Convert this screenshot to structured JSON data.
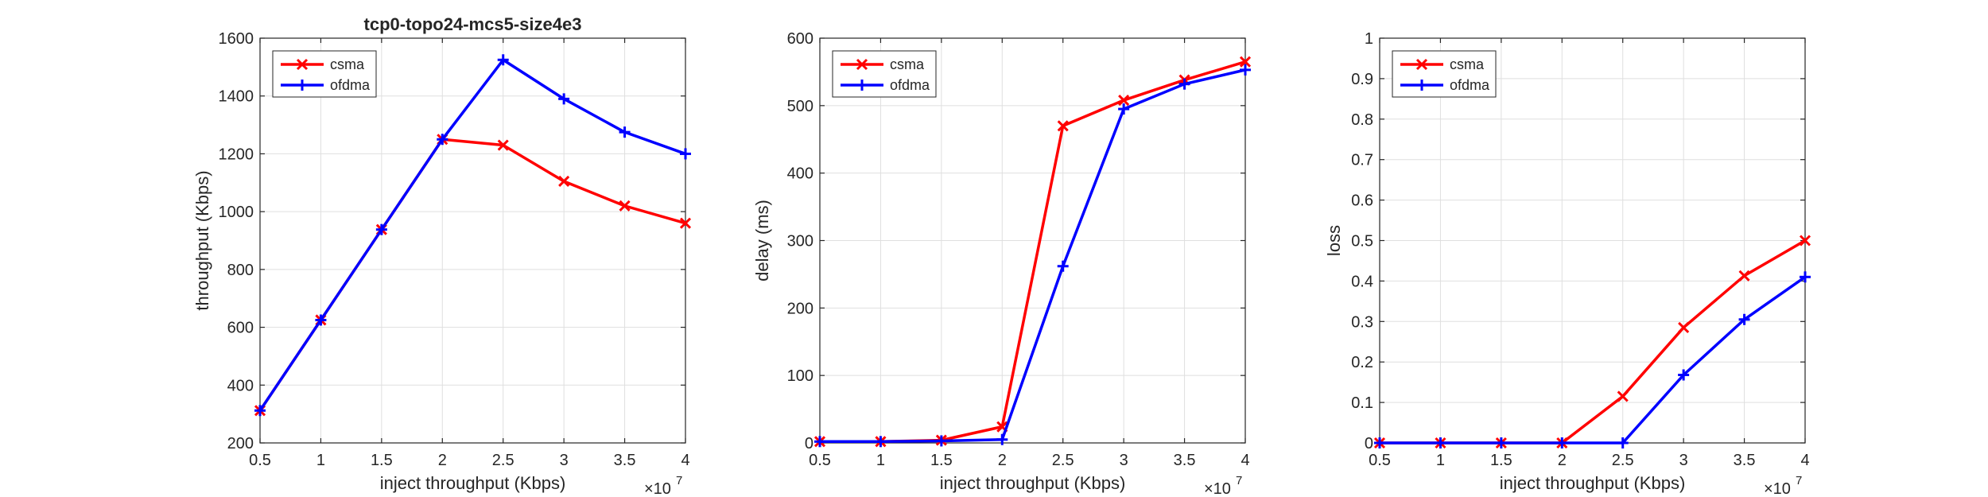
{
  "figure": {
    "background": "#ffffff",
    "axis_color": "#262626",
    "grid_color": "#dfdfdf"
  },
  "chart_data": [
    {
      "type": "line",
      "title": "tcp0-topo24-mcs5-size4e3",
      "xlabel": "inject throughput (Kbps)",
      "ylabel": "throughput (Kbps)",
      "x_exponent_label": "×10",
      "x_exponent": "7",
      "x": [
        0.5,
        1,
        1.5,
        2,
        2.5,
        3,
        3.5,
        4
      ],
      "xlim": [
        0.5,
        4
      ],
      "ylim": [
        200,
        1600
      ],
      "xticks": [
        0.5,
        1,
        1.5,
        2,
        2.5,
        3,
        3.5,
        4
      ],
      "xtick_labels": [
        "0.5",
        "1",
        "1.5",
        "2",
        "2.5",
        "3",
        "3.5",
        "4"
      ],
      "yticks": [
        200,
        400,
        600,
        800,
        1000,
        1200,
        1400,
        1600
      ],
      "ytick_labels": [
        "200",
        "400",
        "600",
        "800",
        "1000",
        "1200",
        "1400",
        "1600"
      ],
      "grid": true,
      "legend_position": "top-left",
      "series": [
        {
          "name": "csma",
          "color": "#ff0000",
          "marker": "x",
          "values": [
            312,
            625,
            938,
            1250,
            1230,
            1105,
            1020,
            960
          ]
        },
        {
          "name": "ofdma",
          "color": "#0000ff",
          "marker": "+",
          "values": [
            312,
            625,
            938,
            1250,
            1525,
            1390,
            1275,
            1200
          ]
        }
      ]
    },
    {
      "type": "line",
      "title": "",
      "xlabel": "inject throughput (Kbps)",
      "ylabel": "delay (ms)",
      "x_exponent_label": "×10",
      "x_exponent": "7",
      "x": [
        0.5,
        1,
        1.5,
        2,
        2.5,
        3,
        3.5,
        4
      ],
      "xlim": [
        0.5,
        4
      ],
      "ylim": [
        0,
        600
      ],
      "xticks": [
        0.5,
        1,
        1.5,
        2,
        2.5,
        3,
        3.5,
        4
      ],
      "xtick_labels": [
        "0.5",
        "1",
        "1.5",
        "2",
        "2.5",
        "3",
        "3.5",
        "4"
      ],
      "yticks": [
        0,
        100,
        200,
        300,
        400,
        500,
        600
      ],
      "ytick_labels": [
        "0",
        "100",
        "200",
        "300",
        "400",
        "500",
        "600"
      ],
      "grid": true,
      "legend_position": "top-left",
      "series": [
        {
          "name": "csma",
          "color": "#ff0000",
          "marker": "x",
          "values": [
            2,
            2,
            4,
            24,
            470,
            508,
            538,
            565
          ]
        },
        {
          "name": "ofdma",
          "color": "#0000ff",
          "marker": "+",
          "values": [
            2,
            2,
            3,
            5,
            262,
            495,
            532,
            553
          ]
        }
      ]
    },
    {
      "type": "line",
      "title": "",
      "xlabel": "inject throughput (Kbps)",
      "ylabel": "loss",
      "x_exponent_label": "×10",
      "x_exponent": "7",
      "x": [
        0.5,
        1,
        1.5,
        2,
        2.5,
        3,
        3.5,
        4
      ],
      "xlim": [
        0.5,
        4
      ],
      "ylim": [
        0,
        1
      ],
      "xticks": [
        0.5,
        1,
        1.5,
        2,
        2.5,
        3,
        3.5,
        4
      ],
      "xtick_labels": [
        "0.5",
        "1",
        "1.5",
        "2",
        "2.5",
        "3",
        "3.5",
        "4"
      ],
      "yticks": [
        0,
        0.1,
        0.2,
        0.3,
        0.4,
        0.5,
        0.6,
        0.7,
        0.8,
        0.9,
        1
      ],
      "ytick_labels": [
        "0",
        "0.1",
        "0.2",
        "0.3",
        "0.4",
        "0.5",
        "0.6",
        "0.7",
        "0.8",
        "0.9",
        "1"
      ],
      "grid": true,
      "legend_position": "top-left",
      "series": [
        {
          "name": "csma",
          "color": "#ff0000",
          "marker": "x",
          "values": [
            0,
            0,
            0,
            0,
            0.115,
            0.285,
            0.413,
            0.5
          ]
        },
        {
          "name": "ofdma",
          "color": "#0000ff",
          "marker": "+",
          "values": [
            0,
            0,
            0,
            0,
            0,
            0.168,
            0.305,
            0.41
          ]
        }
      ]
    }
  ]
}
